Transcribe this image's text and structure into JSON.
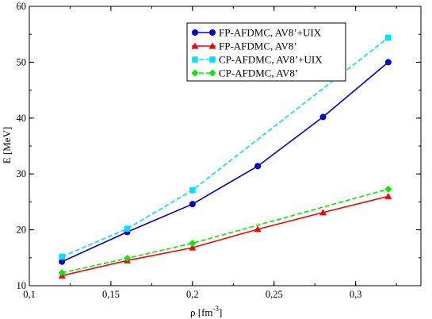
{
  "chart_data": {
    "type": "line",
    "title": "",
    "xlabel_main": "ρ [fm",
    "xlabel_sup": "-3",
    "xlabel_end": "]",
    "ylabel": "E [MeV]",
    "xlim": [
      0.1,
      0.34
    ],
    "ylim": [
      10,
      60
    ],
    "x_ticks": [
      0.1,
      0.15,
      0.2,
      0.25,
      0.3
    ],
    "x_tick_labels": [
      "0,1",
      "0,15",
      "0,2",
      "0,25",
      "0,3"
    ],
    "x_minor_step": 0.025,
    "y_ticks": [
      10,
      20,
      30,
      40,
      50,
      60
    ],
    "y_tick_labels": [
      "10",
      "20",
      "30",
      "40",
      "50",
      "60"
    ],
    "y_minor_step": 5,
    "grid": false,
    "legend_position": "top-right",
    "series": [
      {
        "name": "FP-AFDMC, AV8’+UIX",
        "color": "#0000cc",
        "line": "solid",
        "marker": "circle",
        "x": [
          0.12,
          0.16,
          0.2,
          0.24,
          0.28,
          0.32
        ],
        "y": [
          14.3,
          19.6,
          24.6,
          31.4,
          40.2,
          50.0
        ]
      },
      {
        "name": "FP-AFDMC, AV8’",
        "color": "#ff0000",
        "line": "solid",
        "marker": "triangle",
        "x": [
          0.12,
          0.16,
          0.2,
          0.24,
          0.28,
          0.32
        ],
        "y": [
          11.8,
          14.5,
          16.8,
          20.1,
          23.1,
          26.0
        ]
      },
      {
        "name": "CP-AFDMC, AV8’+UIX",
        "color": "#00e0ff",
        "line": "dashed",
        "marker": "square",
        "x": [
          0.12,
          0.16,
          0.2,
          0.32
        ],
        "y": [
          15.2,
          20.2,
          27.1,
          54.4
        ]
      },
      {
        "name": "CP-AFDMC, AV8’",
        "color": "#00ee00",
        "line": "dashed",
        "marker": "diamond",
        "x": [
          0.12,
          0.16,
          0.2,
          0.32
        ],
        "y": [
          12.3,
          14.9,
          17.6,
          27.3
        ]
      }
    ]
  }
}
